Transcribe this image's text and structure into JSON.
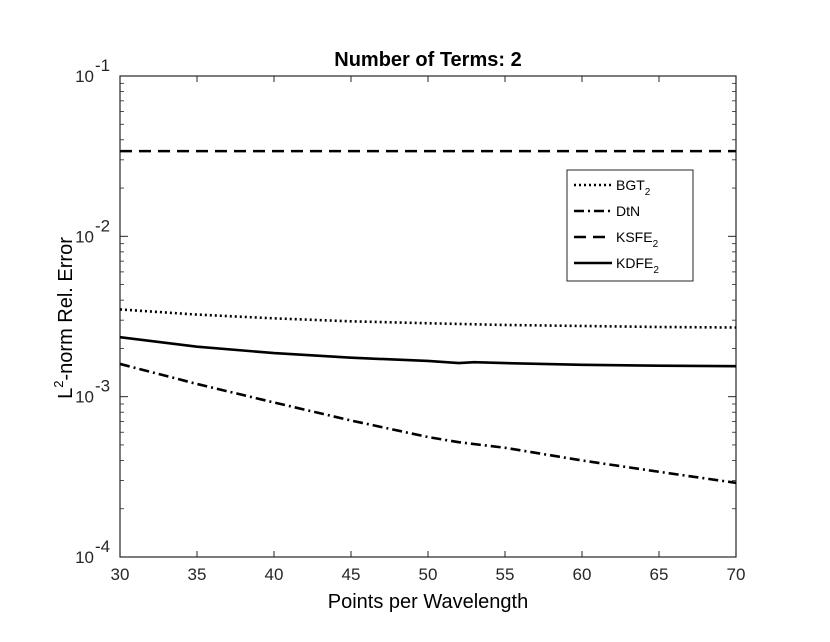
{
  "chart_data": {
    "type": "line",
    "title": "Number of Terms: 2",
    "xlabel": "Points per Wavelength",
    "ylabel_main": "-norm Rel. Error",
    "ylabel_prefix": "L",
    "ylabel_superscript": "2",
    "xlim": [
      30,
      70
    ],
    "ylim": [
      0.0001,
      0.1
    ],
    "yscale": "log",
    "grid": false,
    "legend_position": "top-right",
    "x_ticks": [
      "30",
      "35",
      "40",
      "45",
      "50",
      "55",
      "60",
      "65",
      "70"
    ],
    "y_ticks": [
      {
        "base": "10",
        "exp": "-4"
      },
      {
        "base": "10",
        "exp": "-3"
      },
      {
        "base": "10",
        "exp": "-2"
      },
      {
        "base": "10",
        "exp": "-1"
      }
    ],
    "series": [
      {
        "name": "BGT",
        "subscript": "2",
        "style": "dotted",
        "x": [
          30,
          35,
          40,
          45,
          50,
          55,
          60,
          65,
          70
        ],
        "y": [
          0.0035,
          0.00325,
          0.00308,
          0.00295,
          0.00287,
          0.0028,
          0.00276,
          0.00272,
          0.0027
        ]
      },
      {
        "name": "DtN",
        "subscript": "",
        "style": "dashdot",
        "x": [
          30,
          35,
          40,
          45,
          50,
          52,
          55,
          60,
          65,
          70
        ],
        "y": [
          0.0016,
          0.0012,
          0.00092,
          0.00071,
          0.00056,
          0.00052,
          0.00048,
          0.0004,
          0.00034,
          0.00029
        ]
      },
      {
        "name": "KSFE",
        "subscript": "2",
        "style": "dashed",
        "x": [
          30,
          70
        ],
        "y": [
          0.034,
          0.034
        ]
      },
      {
        "name": "KDFE",
        "subscript": "2",
        "style": "solid",
        "x": [
          30,
          35,
          40,
          45,
          50,
          52,
          53,
          55,
          60,
          65,
          70
        ],
        "y": [
          0.00235,
          0.00205,
          0.00187,
          0.00175,
          0.00167,
          0.00162,
          0.00164,
          0.00162,
          0.00158,
          0.00156,
          0.00155
        ]
      }
    ]
  }
}
